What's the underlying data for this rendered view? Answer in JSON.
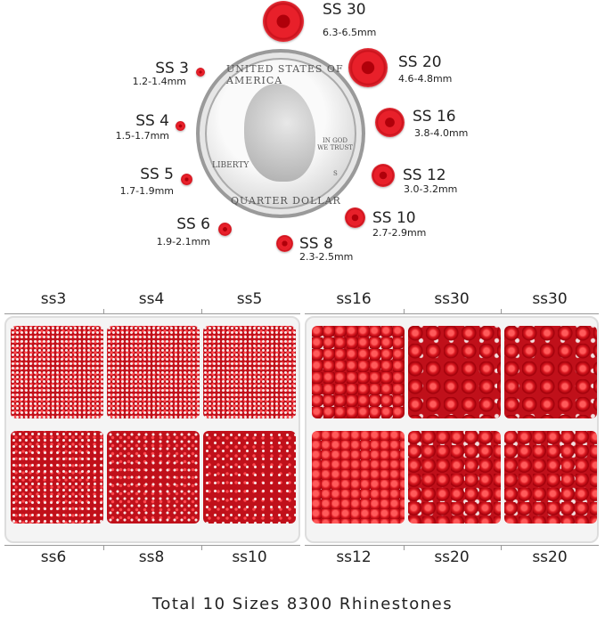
{
  "size_chart": [
    {
      "name": "SS 30",
      "mm": "6.3-6.5mm"
    },
    {
      "name": "SS 20",
      "mm": "4.6-4.8mm"
    },
    {
      "name": "SS 16",
      "mm": "3.8-4.0mm"
    },
    {
      "name": "SS 12",
      "mm": "3.0-3.2mm"
    },
    {
      "name": "SS 10",
      "mm": "2.7-2.9mm"
    },
    {
      "name": "SS 8",
      "mm": "2.3-2.5mm"
    },
    {
      "name": "SS 6",
      "mm": "1.9-2.1mm"
    },
    {
      "name": "SS 5",
      "mm": "1.7-1.9mm"
    },
    {
      "name": "SS 4",
      "mm": "1.5-1.7mm"
    },
    {
      "name": "SS 3",
      "mm": "1.2-1.4mm"
    }
  ],
  "coin": {
    "top": "UNITED STATES OF AMERICA",
    "left": "LIBERTY",
    "motto": "IN GOD WE TRUST",
    "mint": "S",
    "bottom": "QUARTER DOLLAR"
  },
  "left_tray": {
    "top": [
      "ss3",
      "ss4",
      "ss5"
    ],
    "bottom": [
      "ss6",
      "ss8",
      "ss10"
    ]
  },
  "right_tray": {
    "top": [
      "ss16",
      "ss30",
      "ss30"
    ],
    "bottom": [
      "ss12",
      "ss20",
      "ss20"
    ]
  },
  "footer": "Total 10 Sizes 8300 Rhinestones",
  "colors": {
    "gem": "#d8141e",
    "text": "#222222"
  }
}
